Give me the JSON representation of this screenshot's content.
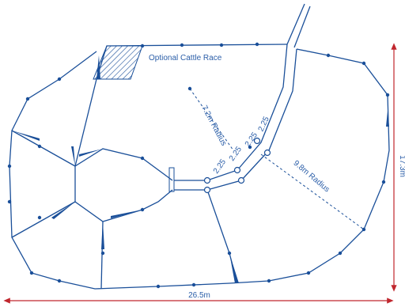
{
  "labels": {
    "race": "Optional Cattle Race",
    "radius_inner": "7.2m Radius",
    "radius_outer": "9.8m Radius",
    "spacings": [
      "2.25",
      "2.25",
      "2.25",
      "2.25"
    ],
    "width": "26.5m",
    "height": "17.3m"
  }
}
